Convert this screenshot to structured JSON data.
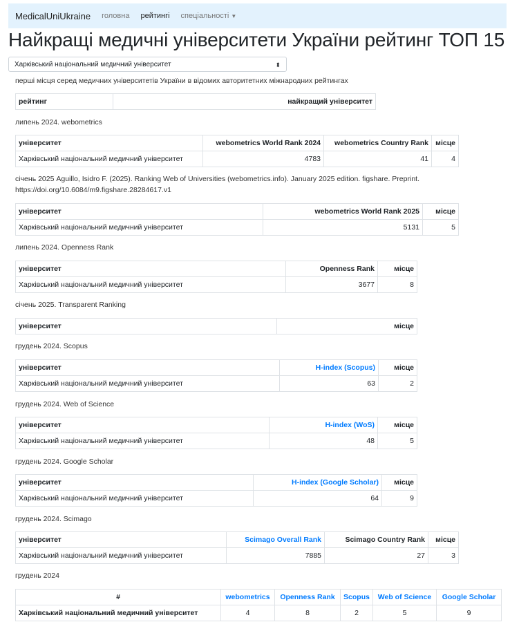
{
  "nav": {
    "brand": "MedicalUniUkraine",
    "links": [
      "головна",
      "рейтингі",
      "спеціальності"
    ],
    "active": 1
  },
  "title": "Найкращі медичні університети України рейтинг ТОП 15",
  "select": {
    "value": "Харківський національний медичний університет"
  },
  "intro": "перші місця серед медичних університетів України в відомих авторитетних міжнародних рейтингах",
  "sections": [
    {
      "caption": "",
      "headers": [
        "рейтинг",
        "найкращий університет"
      ],
      "rows": []
    },
    {
      "caption": "липень 2024. webometrics",
      "headers": [
        "університет",
        "webometrics World Rank 2024",
        "webometrics Country Rank",
        "місце"
      ],
      "rows": [
        [
          "Харківський національний медичний університет",
          "4783",
          "41",
          "4"
        ]
      ]
    },
    {
      "caption": "січень 2025 Aguillo, Isidro F. (2025). Ranking Web of Universities (webometrics.info). January 2025 edition. figshare. Preprint. https://doi.org/10.6084/m9.figshare.28284617.v1",
      "headers": [
        "університет",
        "webometrics World Rank 2025",
        "місце"
      ],
      "rows": [
        [
          "Харківський національний медичний університет",
          "5131",
          "5"
        ]
      ]
    },
    {
      "caption": "липень 2024. Openness Rank",
      "headers": [
        "університет",
        "Openness Rank",
        "місце"
      ],
      "rows": [
        [
          "Харківський національний медичний університет",
          "3677",
          "8"
        ]
      ]
    },
    {
      "caption": "січень 2025. Transparent Ranking",
      "headers": [
        "університет",
        "місце"
      ],
      "rows": []
    },
    {
      "caption": "грудень 2024. Scopus",
      "headers": [
        "університет",
        "H-index (Scopus)",
        "місце"
      ],
      "links": [
        1
      ],
      "rows": [
        [
          "Харківський національний медичний університет",
          "63",
          "2"
        ]
      ]
    },
    {
      "caption": "грудень 2024. Web of Science",
      "headers": [
        "університет",
        "H-index (WoS)",
        "місце"
      ],
      "links": [
        1
      ],
      "rows": [
        [
          "Харківський національний медичний університет",
          "48",
          "5"
        ]
      ]
    },
    {
      "caption": "грудень 2024. Google Scholar",
      "headers": [
        "університет",
        "H-index (Google Scholar)",
        "місце"
      ],
      "links": [
        1
      ],
      "rows": [
        [
          "Харківський національний медичний університет",
          "64",
          "9"
        ]
      ]
    },
    {
      "caption": "грудень 2024. Scimago",
      "headers": [
        "університет",
        "Scimago Overall Rank",
        "Scimago Country Rank",
        "місце"
      ],
      "links": [
        1
      ],
      "rows": [
        [
          "Харківський національний медичний університет",
          "7885",
          "27",
          "3"
        ]
      ]
    },
    {
      "caption": "грудень 2024",
      "headers": [
        "#",
        "webometrics",
        "Openness Rank",
        "Scopus",
        "Web of Science",
        "Google Scholar"
      ],
      "links": [
        1,
        2,
        3,
        4,
        5
      ],
      "rows": [
        [
          "Харківський національний медичний університет",
          "4",
          "8",
          "2",
          "5",
          "9"
        ]
      ]
    }
  ],
  "colors": {
    "nav_bg": "#e3f2fd",
    "link": "#007bff"
  }
}
